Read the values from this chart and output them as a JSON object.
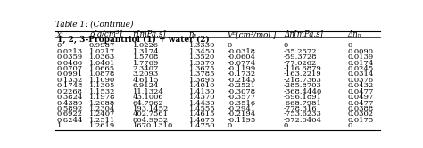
{
  "title": "Table 1: (Continue)",
  "section_header": "1, 2, 3-Propantriol (1) + water (2)",
  "col_headers": [
    "x₁",
    "ρ[g/cm³]",
    "η[mPa.s]",
    "nₙ",
    "Vᴱ[cm³/mol.]",
    "Δη[mPa.s]",
    "Δnₙ"
  ],
  "rows": [
    [
      "0",
      "0.9987",
      "1.0226",
      "1.3330",
      "0",
      "0",
      "0"
    ],
    [
      "0.0213",
      "1.0217",
      "1.3174",
      "1.3450",
      "-0.0318",
      "-35.2572",
      "0.0090"
    ],
    [
      "0.0359",
      "1.0363",
      "1.5708",
      "1.3520",
      "-0.0604",
      "-59.3728",
      "0.0139"
    ],
    [
      "0.0466",
      "1.0461",
      "1.7769",
      "1.3570",
      "-0.0774",
      "-77.0262",
      "0.0174"
    ],
    [
      "0.0707",
      "1.0665",
      "2.3407",
      "1.3675",
      "-0.1199",
      "-116.6879",
      "0.0245"
    ],
    [
      "0.0991",
      "1.0878",
      "3.2093",
      "1.3785",
      "-0.1732",
      "-163.2219",
      "0.0314"
    ],
    [
      "0.1332",
      "1.1090",
      "4.6115",
      "1.3895",
      "-0.2143",
      "-218.7363",
      "0.0376"
    ],
    [
      "0.1748",
      "1.1305",
      "6.9124",
      "1.4010",
      "-0.2521",
      "-285.8703",
      "0.0432"
    ],
    [
      "0.2268",
      "1.1532",
      "11.1324",
      "1.4130",
      "-0.3078",
      "-368.4440",
      "0.0477"
    ],
    [
      "0.3824",
      "1.1978",
      "43.1006",
      "1.4370",
      "-0.3577",
      "-596.1891",
      "0.0497"
    ],
    [
      "0.4389",
      "1.2088",
      "64.7962",
      "1.4430",
      "-0.3516",
      "-668.7981",
      "0.0477"
    ],
    [
      "0.5892",
      "1.2304",
      "193.1452",
      "1.4555",
      "-0.2941",
      "-778.316",
      "0.0388"
    ],
    [
      "0.6922",
      "1.2407",
      "402.7561",
      "1.4615",
      "-0.2194",
      "-753.6233",
      "0.0302"
    ],
    [
      "0.8244",
      "1.2511",
      "804.9952",
      "1.4675",
      "-0.1195",
      "-572.0404",
      "0.0175"
    ],
    [
      "1",
      "1.2619",
      "1670.1310",
      "1.4750",
      "0",
      "0",
      "0"
    ]
  ],
  "background_color": "#ffffff",
  "font_size": 6.0,
  "title_font_size": 6.5,
  "header_font_size": 6.2,
  "section_font_size": 6.5
}
